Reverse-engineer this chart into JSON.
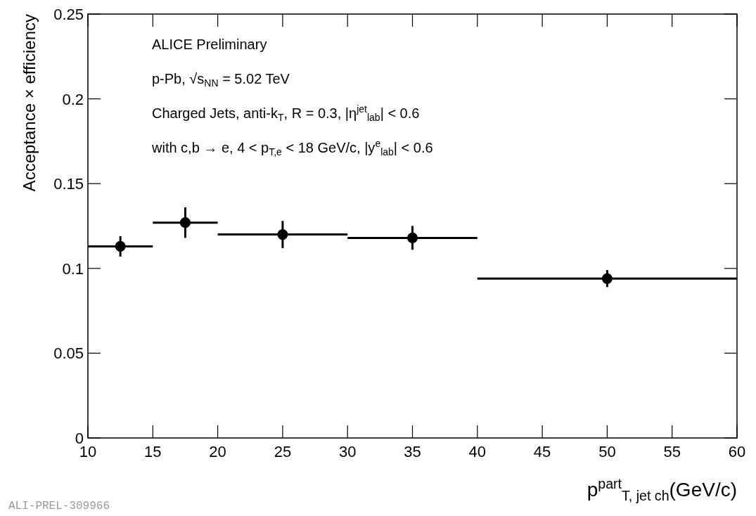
{
  "chart_data": {
    "type": "scatter",
    "xlabel": "p$^{part}$$_{T, jet ch}$(GeV/c)",
    "ylabel": "Acceptance × efficiency",
    "annotations": [
      "ALICE Preliminary",
      "p-Pb, √s$_{NN}$ = 5.02 TeV",
      "Charged Jets, anti-k$_{T}$, R = 0.3, |η$^{jet}$$_{lab}$| < 0.6",
      "with c,b → e, 4 < p$_{T,e}$ < 18 GeV/c, |y$^{e}$$_{lab}$| < 0.6",
      "ALI-PREL-309966"
    ],
    "x": [
      12.5,
      17.5,
      25,
      35,
      50
    ],
    "series": [
      {
        "color": "#000000",
        "values": [
          0.113,
          0.127,
          0.12,
          0.118,
          0.094
        ],
        "xerrors": [
          2.5,
          2.5,
          5,
          5,
          10
        ],
        "errors": [
          0.006,
          0.009,
          0.008,
          0.007,
          0.005
        ]
      }
    ],
    "marker": "circle",
    "xlim": [
      10,
      60
    ],
    "xticks": [
      10,
      15,
      20,
      25,
      30,
      35,
      40,
      45,
      50,
      55,
      60
    ],
    "ylim": [
      0,
      0.25
    ],
    "yticks": [
      {
        "value": 0,
        "label": "0"
      },
      0.05,
      0.1,
      0.15,
      0.2,
      0.25
    ]
  }
}
